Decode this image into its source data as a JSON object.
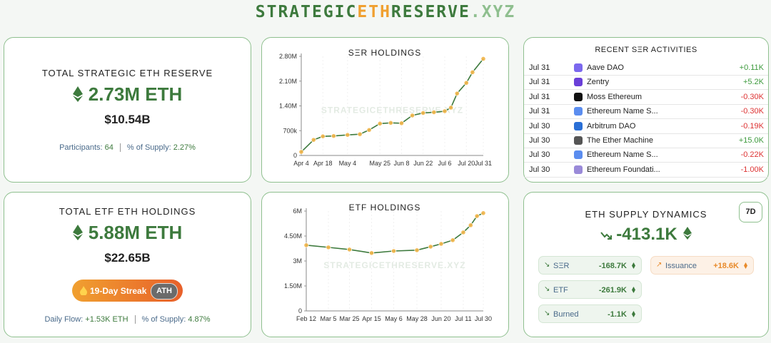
{
  "header": {
    "title_parts": [
      "STRATEGIC",
      "ETH",
      "RESERVE",
      ".XYZ"
    ]
  },
  "reserve_card": {
    "title": "TOTAL STRATEGIC ETH RESERVE",
    "amount": "2.73M ETH",
    "usd": "$10.54B",
    "participants_label": "Participants:",
    "participants": "64",
    "supply_label": "% of Supply:",
    "supply": "2.27%"
  },
  "ser_chart": {
    "type": "line",
    "title": "SΞR HOLDINGS",
    "watermark": "STRATEGICETHRESERVE.XYZ",
    "x": [
      "Apr 4",
      "Apr 12",
      "Apr 18",
      "Apr 25",
      "May 4",
      "May 12",
      "May 18",
      "May 25",
      "Jun 1",
      "Jun 8",
      "Jun 15",
      "Jun 22",
      "Jun 29",
      "Jul 6",
      "Jul 10",
      "Jul 14",
      "Jul 20",
      "Jul 24",
      "Jul 31"
    ],
    "values": [
      100000,
      440000,
      540000,
      550000,
      580000,
      600000,
      720000,
      900000,
      920000,
      910000,
      1130000,
      1200000,
      1220000,
      1250000,
      1350000,
      1750000,
      2050000,
      2350000,
      2730000
    ],
    "color": "#3d7a3d",
    "marker_color": "#f2b54a",
    "xlim": [
      "Apr 4",
      "Jul 31"
    ],
    "xticks": [
      "Apr 4",
      "Apr 18",
      "May 4",
      "May 25",
      "Jun 8",
      "Jun 22",
      "Jul 6",
      "Jul 20",
      "Jul 31"
    ],
    "ylim": [
      0,
      2800000
    ],
    "yticks": [
      0,
      {
        "value": 700000,
        "label": "700k"
      },
      {
        "value": 1400000,
        "label": "1.40M"
      },
      {
        "value": 2100000,
        "label": "2.10M"
      },
      {
        "value": 2800000,
        "label": "2.80M"
      }
    ]
  },
  "activities": {
    "title": "RECENT SΞR ACTIVITIES",
    "rows": [
      [
        "Jul 31",
        "Aave DAO",
        "+0.11K"
      ],
      [
        "Jul 31",
        "Zentry",
        "+5.2K"
      ],
      [
        "Jul 31",
        "Moss Ethereum",
        "-0.30K"
      ],
      [
        "Jul 31",
        "Ethereum Name S...",
        "-0.30K"
      ],
      [
        "Jul 30",
        "Arbitrum DAO",
        "-0.19K"
      ],
      [
        "Jul 30",
        "The Ether Machine",
        "+15.0K"
      ],
      [
        "Jul 30",
        "Ethereum Name S...",
        "-0.22K"
      ],
      [
        "Jul 30",
        "Ethereum Foundati...",
        "-1.00K"
      ]
    ]
  },
  "etf_card": {
    "title": "TOTAL ETF ETH HOLDINGS",
    "amount": "5.88M ETH",
    "usd": "$22.65B",
    "streak": "19-Day Streak",
    "badge": "ATH",
    "flow_label": "Daily Flow:",
    "flow": "+1.53K ETH",
    "supply_label": "% of Supply:",
    "supply": "4.87%"
  },
  "etf_chart": {
    "type": "line",
    "title": "ETF HOLDINGS",
    "watermark": "STRATEGICETHRESERVE.XYZ",
    "x": [
      "Feb 12",
      "Mar 5",
      "Mar 25",
      "Apr 15",
      "May 6",
      "May 28",
      "Jun 10",
      "Jun 20",
      "Jul 1",
      "Jul 11",
      "Jul 18",
      "Jul 24",
      "Jul 30"
    ],
    "values": [
      3950000,
      3820000,
      3690000,
      3480000,
      3600000,
      3650000,
      3860000,
      4030000,
      4250000,
      4720000,
      5150000,
      5700000,
      5880000
    ],
    "color": "#3d7a3d",
    "marker_color": "#f2b54a",
    "xlim": [
      "Feb 12",
      "Jul 30"
    ],
    "xticks": [
      "Feb 12",
      "Mar 5",
      "Mar 25",
      "Apr 15",
      "May 6",
      "May 28",
      "Jun 20",
      "Jul 11",
      "Jul 30"
    ],
    "ylim": [
      0,
      6000000
    ],
    "yticks": [
      0,
      {
        "value": 1500000,
        "label": "1.50M"
      },
      {
        "value": 3000000,
        "label": "3M"
      },
      {
        "value": 4500000,
        "label": "4.50M"
      },
      {
        "value": 6000000,
        "label": "6M"
      }
    ]
  },
  "supply_card": {
    "title": "ETH SUPPLY DYNAMICS",
    "period": "7D",
    "total": "-413.1K",
    "items": [
      [
        "SΞR",
        "-168.7K"
      ],
      [
        "ETF",
        "-261.9K"
      ],
      [
        "Burned",
        "-1.1K"
      ],
      [
        "Issuance",
        "+18.6K"
      ]
    ]
  }
}
